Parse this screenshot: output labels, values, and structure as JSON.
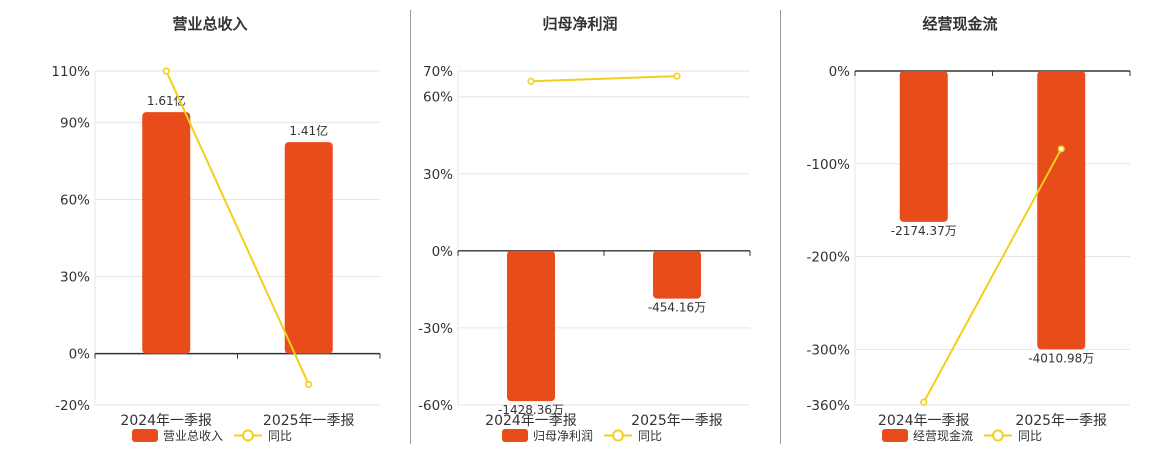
{
  "colors": {
    "bar": "#e84c1a",
    "line": "#f2cf1a",
    "grid": "#e6e6e6",
    "axis": "#333333",
    "text": "#333333"
  },
  "chart_data": [
    {
      "type": "bar",
      "title": "营业总收入",
      "categories": [
        "2024年一季报",
        "2025年一季报"
      ],
      "series": [
        {
          "name": "营业总收入",
          "type": "bar",
          "values": [
            1.61,
            1.41
          ],
          "value_labels": [
            "1.61亿",
            "1.41亿"
          ],
          "unit": "亿"
        },
        {
          "name": "同比",
          "type": "line",
          "values": [
            110,
            -12
          ]
        }
      ],
      "ylim": [
        -20,
        110
      ],
      "yticks": [
        -20,
        0,
        30,
        60,
        90,
        110
      ],
      "ytick_labels": [
        "-20%",
        "0%",
        "30%",
        "60%",
        "90%",
        "110%"
      ],
      "grid": true,
      "legend": "bottom"
    },
    {
      "type": "bar",
      "title": "归母净利润",
      "categories": [
        "2024年一季报",
        "2025年一季报"
      ],
      "series": [
        {
          "name": "归母净利润",
          "type": "bar",
          "values": [
            -1428.36,
            -454.16
          ],
          "value_labels": [
            "-1428.36万",
            "-454.16万"
          ],
          "unit": "万"
        },
        {
          "name": "同比",
          "type": "line",
          "values": [
            66,
            68
          ]
        }
      ],
      "ylim": [
        -60,
        70
      ],
      "yticks": [
        -60,
        -30,
        0,
        30,
        60,
        70
      ],
      "ytick_labels": [
        "-60%",
        "-30%",
        "0%",
        "30%",
        "60%",
        "70%"
      ],
      "grid": true,
      "legend": "bottom"
    },
    {
      "type": "bar",
      "title": "经营现金流",
      "categories": [
        "2024年一季报",
        "2025年一季报"
      ],
      "series": [
        {
          "name": "经营现金流",
          "type": "bar",
          "values": [
            -2174.37,
            -4010.98
          ],
          "value_labels": [
            "-2174.37万",
            "-4010.98万"
          ],
          "unit": "万"
        },
        {
          "name": "同比",
          "type": "line",
          "values": [
            -357,
            -84
          ]
        }
      ],
      "ylim": [
        -360,
        0
      ],
      "yticks": [
        -360,
        -300,
        -200,
        -100,
        0
      ],
      "ytick_labels": [
        "-360%",
        "-300%",
        "-200%",
        "-100%",
        "0%"
      ],
      "grid": true,
      "legend": "bottom"
    }
  ]
}
